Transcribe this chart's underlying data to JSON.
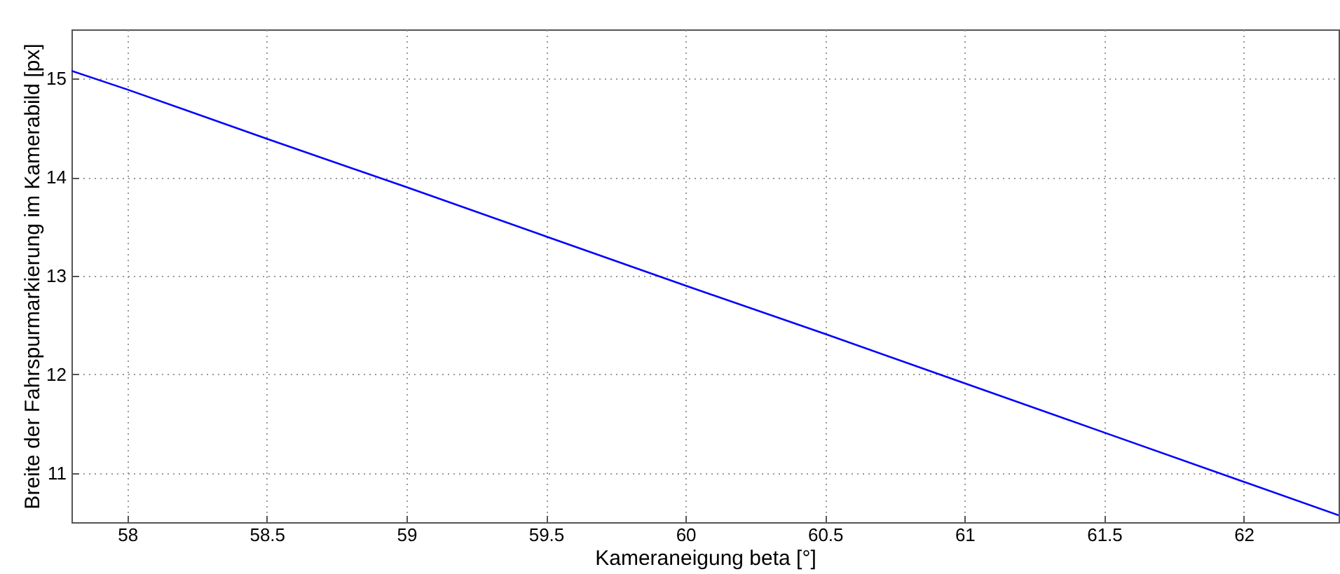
{
  "chart_data": {
    "type": "line",
    "xlabel": "Kameraneigung beta [°]",
    "ylabel": "Breite der Fahrspurmarkierung im Kamerabild [px]",
    "x": [
      57.8,
      58,
      58.5,
      59,
      59.5,
      60,
      60.5,
      61,
      61.5,
      62,
      62.34
    ],
    "series": [
      {
        "color": "#0000ff",
        "values": [
          15.08,
          14.89,
          14.39,
          13.9,
          13.4,
          12.9,
          12.41,
          11.91,
          11.41,
          10.91,
          10.57
        ]
      }
    ],
    "xlim": [
      57.8,
      62.34
    ],
    "ylim": [
      10.5,
      15.5
    ],
    "xticks": [
      58,
      58.5,
      59,
      59.5,
      60,
      60.5,
      61,
      61.5,
      62
    ],
    "yticks": [
      11,
      12,
      13,
      14,
      15
    ],
    "grid": true,
    "marker": "none",
    "line_style": "solid"
  }
}
